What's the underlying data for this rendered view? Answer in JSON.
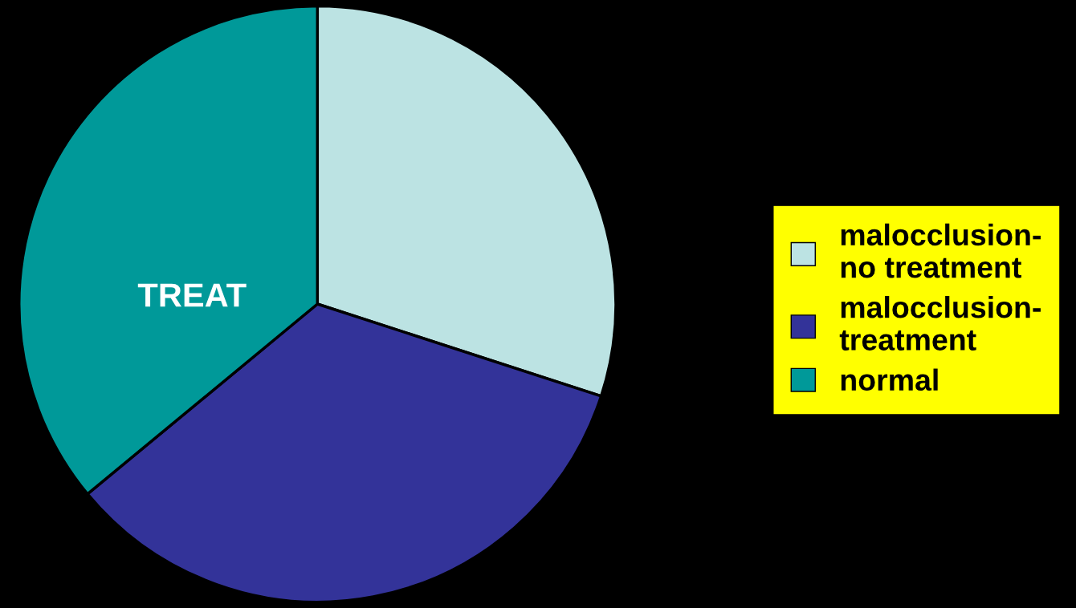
{
  "chart_data": {
    "type": "pie",
    "title": "TREAT",
    "categories": [
      "malocclusion-no treatment",
      "malocclusion-treatment",
      "normal"
    ],
    "values": [
      30,
      34,
      36
    ],
    "colors": [
      "#bce3e3",
      "#333399",
      "#009999"
    ],
    "legend": "right"
  }
}
